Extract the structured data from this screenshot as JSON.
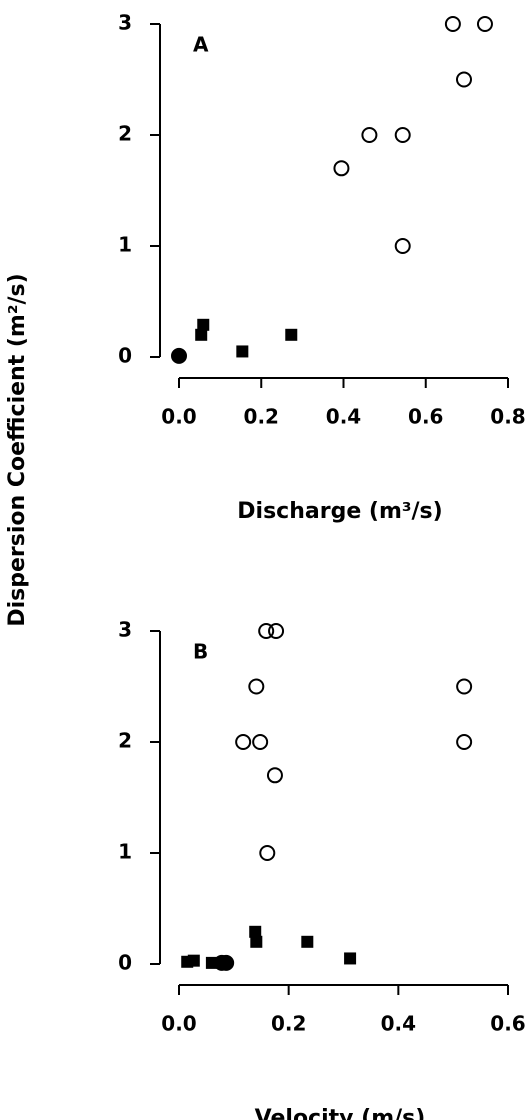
{
  "chart_data": [
    {
      "type": "scatter",
      "panel_label": "A",
      "xlabel": "Discharge (m³/s)",
      "ylabel": "Dispersion Coefficient (m²/s)",
      "xlim": [
        0,
        0.8
      ],
      "ylim": [
        0,
        3
      ],
      "xticks": [
        {
          "value": 0,
          "label": "0.0"
        },
        {
          "value": 0.2,
          "label": "0.2"
        },
        {
          "value": 0.4,
          "label": "0.4"
        },
        {
          "value": 0.6,
          "label": "0.6"
        },
        {
          "value": 0.8,
          "label": "0.8"
        }
      ],
      "yticks": [
        0,
        1,
        2,
        3
      ],
      "series": [
        {
          "marker": "open-circle",
          "color": "#000000",
          "x": [
            0.666,
            0.744,
            0.693,
            0.463,
            0.544,
            0.395,
            0.544
          ],
          "values": [
            3,
            3,
            2.5,
            2,
            2,
            1.7,
            1
          ]
        },
        {
          "marker": "square",
          "color": "#000000",
          "x": [
            0.059,
            0.054,
            0.154,
            0.273
          ],
          "values": [
            0.29,
            0.2,
            0.05,
            0.2
          ]
        },
        {
          "marker": "circle",
          "color": "#000000",
          "x": [
            0
          ],
          "values": [
            0.01
          ]
        }
      ]
    },
    {
      "type": "scatter",
      "panel_label": "B",
      "xlabel": "Velocity (m/s)",
      "xlim": [
        0,
        0.6
      ],
      "ylim": [
        0,
        3
      ],
      "xticks": [
        {
          "value": 0,
          "label": "0.0"
        },
        {
          "value": 0.2,
          "label": "0.2"
        },
        {
          "value": 0.4,
          "label": "0.4"
        },
        {
          "value": 0.6,
          "label": "0.6"
        }
      ],
      "yticks": [
        0,
        1,
        2,
        3
      ],
      "series": [
        {
          "marker": "open-circle",
          "color": "#000000",
          "x": [
            0.159,
            0.177,
            0.141,
            0.117,
            0.148,
            0.175,
            0.161,
            0.52,
            0.52
          ],
          "values": [
            3,
            3,
            2.5,
            2,
            2,
            1.7,
            1,
            2.5,
            2
          ]
        },
        {
          "marker": "square",
          "color": "#000000",
          "x": [
            0.015,
            0.027,
            0.06,
            0.139,
            0.141,
            0.234,
            0.312
          ],
          "values": [
            0.02,
            0.03,
            0.01,
            0.29,
            0.2,
            0.2,
            0.05
          ]
        },
        {
          "marker": "circle",
          "color": "#000000",
          "x": [
            0.078,
            0.086
          ],
          "values": [
            0.01,
            0.01
          ]
        }
      ]
    }
  ]
}
